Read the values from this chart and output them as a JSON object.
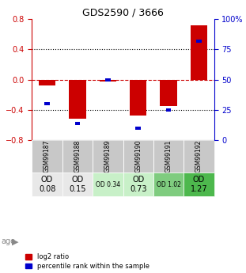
{
  "title": "GDS2590 / 3666",
  "samples": [
    "GSM99187",
    "GSM99188",
    "GSM99189",
    "GSM99190",
    "GSM99191",
    "GSM99192"
  ],
  "log2_ratios": [
    -0.08,
    -0.52,
    -0.03,
    -0.47,
    -0.35,
    0.72
  ],
  "percentile_ranks": [
    30,
    14,
    50,
    10,
    25,
    82
  ],
  "age_labels": [
    "OD\n0.08",
    "OD\n0.15",
    "OD 0.34",
    "OD\n0.73",
    "OD 1.02",
    "OD\n1.27"
  ],
  "age_fontsize_large": [
    true,
    true,
    false,
    true,
    false,
    true
  ],
  "age_bg_colors": [
    "#e8e8e8",
    "#e8e8e8",
    "#c8f0c8",
    "#c8f0c8",
    "#7fcc7f",
    "#4db84d"
  ],
  "bar_color": "#cc0000",
  "percentile_color": "#0000cc",
  "sample_bg_color": "#c8c8c8",
  "ylim": [
    -0.8,
    0.8
  ],
  "yticks_left": [
    -0.8,
    -0.4,
    0.0,
    0.4,
    0.8
  ],
  "yticks_right": [
    0,
    25,
    50,
    75,
    100
  ],
  "dotted_lines": [
    -0.4,
    0.0,
    0.4
  ],
  "legend_red": "log2 ratio",
  "legend_blue": "percentile rank within the sample",
  "xlabel_color": "#333333",
  "left_axis_color": "#cc0000",
  "right_axis_color": "#0000cc"
}
